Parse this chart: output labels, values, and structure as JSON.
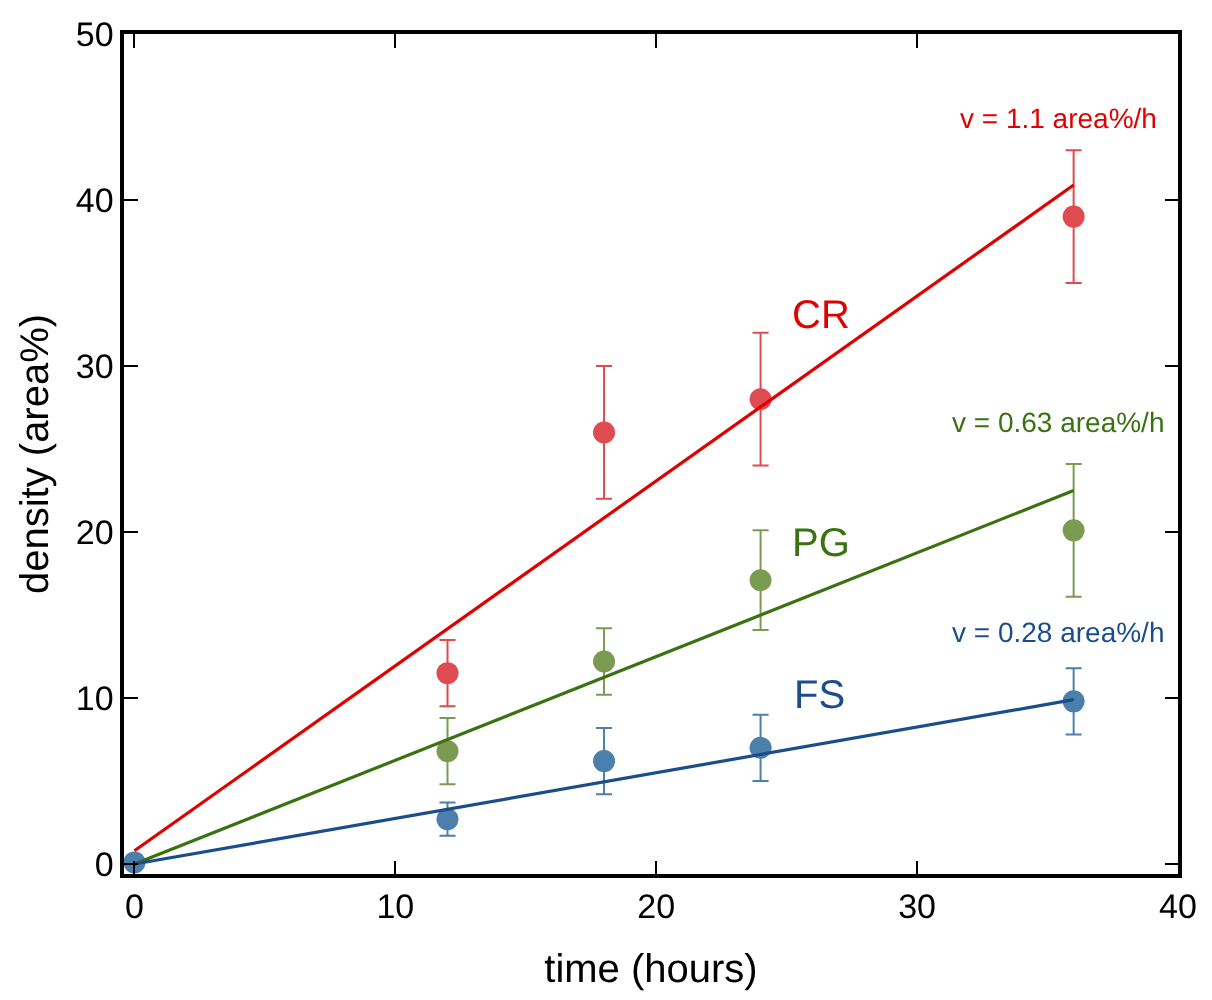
{
  "chart_data": {
    "type": "scatter",
    "xlabel": "time (hours)",
    "ylabel": "density (area%)",
    "xlim": [
      -0.4,
      40
    ],
    "xticks": [
      0,
      10,
      20,
      30,
      40
    ],
    "ylim": [
      -0.6,
      50
    ],
    "yticks": [
      0,
      10,
      20,
      30,
      40,
      50
    ],
    "marker": "circle",
    "series": [
      {
        "color": "#de4b50",
        "x": [
          12,
          18,
          24,
          36
        ],
        "values": [
          11.5,
          26,
          28,
          39
        ],
        "errors": [
          2,
          4,
          4,
          4
        ]
      },
      {
        "color": "#7b9b52",
        "x": [
          12,
          18,
          24,
          36
        ],
        "values": [
          6.8,
          12.2,
          17.1,
          20.1
        ],
        "errors": [
          2,
          2,
          3,
          4
        ]
      },
      {
        "color": "#4a80ab",
        "x": [
          0,
          12,
          18,
          24,
          36
        ],
        "values": [
          0.1,
          2.7,
          6.2,
          7.0,
          9.8
        ],
        "errors": [
          null,
          1,
          2,
          2,
          2
        ]
      },
      {
        "type": "line",
        "marker": "none",
        "color": "#e00000",
        "x": [
          0,
          36
        ],
        "values": [
          0.8,
          40.9
        ]
      },
      {
        "type": "line",
        "marker": "none",
        "color": "#3a7212",
        "x": [
          0,
          36
        ],
        "values": [
          0,
          22.5
        ]
      },
      {
        "type": "line",
        "marker": "none",
        "color": "#1b4d8c",
        "x": [
          0,
          36
        ],
        "values": [
          0,
          9.9
        ]
      }
    ],
    "annotations": [
      "v = 1.1 area%/h",
      "CR",
      "v = 0.63 area%/h",
      "PG",
      "v = 0.28 area%/h",
      "FS"
    ]
  }
}
